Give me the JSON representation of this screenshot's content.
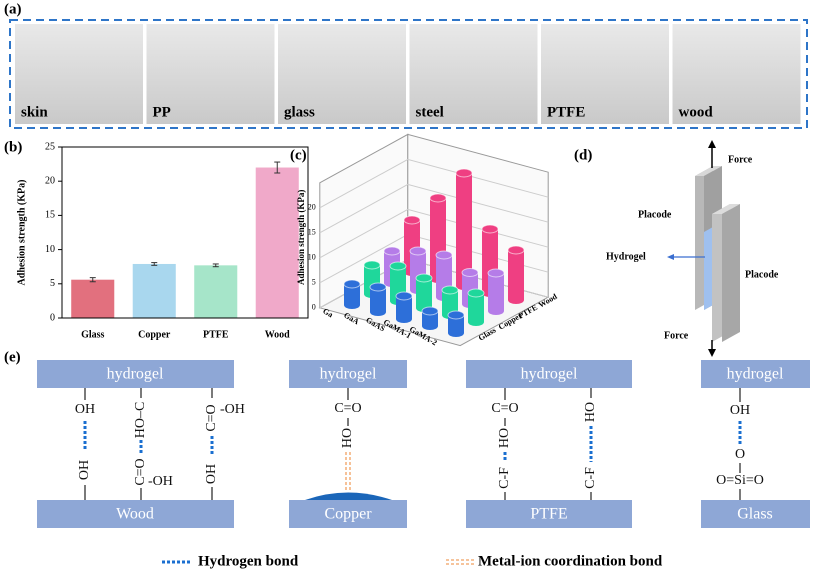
{
  "panel_a": {
    "label": "(a)",
    "photos": [
      "skin",
      "PP",
      "glass",
      "steel",
      "PTFE",
      "wood"
    ]
  },
  "chart_data": [
    {
      "type": "bar",
      "label": "(b)",
      "ylabel": "Adhesion strength (KPa)",
      "categories": [
        "Glass",
        "Copper",
        "PTFE",
        "Wood"
      ],
      "values": [
        5.6,
        7.9,
        7.7,
        22.0
      ],
      "errors": [
        0.3,
        0.2,
        0.2,
        0.8
      ],
      "colors": [
        "#e2707e",
        "#a9d7ee",
        "#a6e5c9",
        "#f0a9c9"
      ],
      "ylim": [
        0,
        25
      ],
      "yticks": [
        0,
        5,
        10,
        15,
        20,
        25
      ]
    },
    {
      "type": "bar3d",
      "label": "(c)",
      "zlabel": "Adhesion strength (KPa)",
      "categories": [
        "Ga",
        "GaA",
        "GaAS",
        "GaMA-1",
        "GaMA-2"
      ],
      "series": [
        {
          "name": "Glass",
          "color": "#2d6fd9",
          "values": [
            4.2,
            5.0,
            4.6,
            3.0,
            3.6
          ]
        },
        {
          "name": "Copper",
          "color": "#1fd79b",
          "values": [
            5.8,
            7.0,
            6.0,
            5.0,
            5.8
          ]
        },
        {
          "name": "PTFE",
          "color": "#b57ce8",
          "values": [
            6.4,
            7.8,
            8.4,
            6.3,
            7.6
          ]
        },
        {
          "name": "Wood",
          "color": "#ef3f82",
          "values": [
            10.4,
            16.2,
            22.6,
            12.8,
            10.0
          ]
        }
      ],
      "zlim": [
        0,
        25
      ],
      "zticks": [
        0,
        5,
        10,
        15,
        20
      ]
    }
  ],
  "panel_d": {
    "label": "(d)",
    "force_top": "Force",
    "placode_left": "Placode",
    "hydrogel": "Hydrogel",
    "placode_right": "Placode",
    "force_bottom": "Force"
  },
  "panel_e": {
    "label": "(e)",
    "wood": {
      "top": "hydrogel",
      "bottom": "Wood",
      "groups": [
        "OH",
        "OH",
        "HO–C",
        "C=O",
        "-OH",
        "C=O",
        "-OH",
        "OH"
      ]
    },
    "copper": {
      "top": "hydrogel",
      "bottom": "Copper",
      "groups": [
        "C=O",
        "HO"
      ]
    },
    "ptfe": {
      "top": "hydrogel",
      "bottom": "PTFE",
      "groups": [
        "C=O",
        "HO",
        "C-F",
        "HO",
        "C-F"
      ]
    },
    "glass": {
      "top": "hydrogel",
      "bottom": "Glass",
      "groups": [
        "OH",
        "O",
        "O=Si=O"
      ]
    }
  },
  "legend": {
    "hydrogen": "Hydrogen bond",
    "metal": "Metal-ion coordination bond"
  }
}
